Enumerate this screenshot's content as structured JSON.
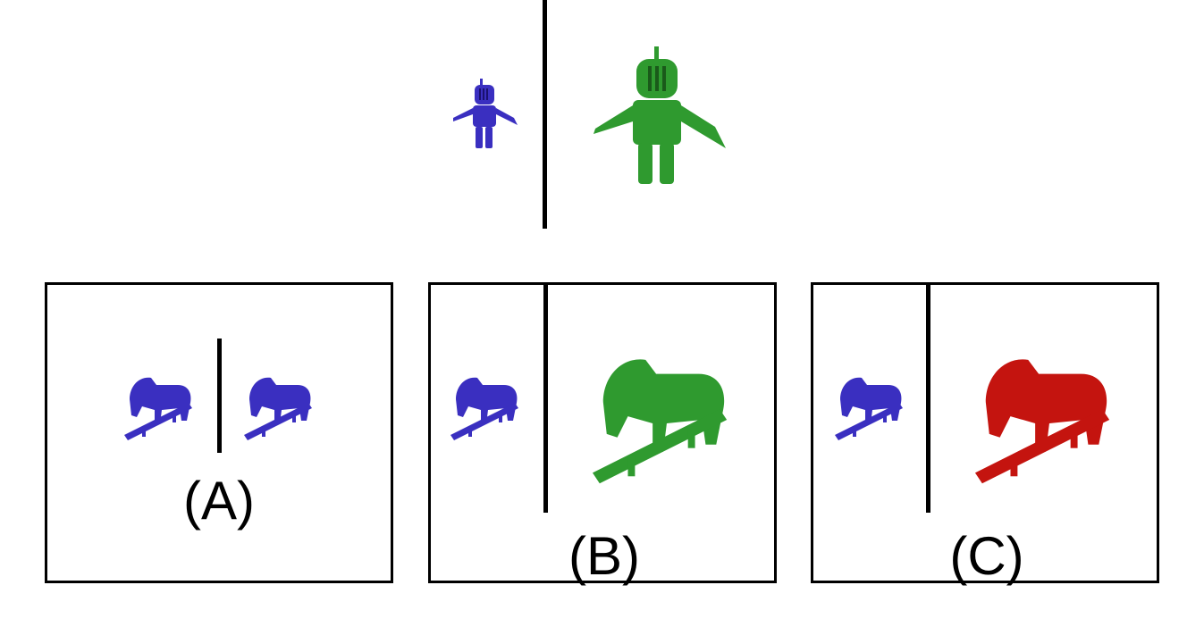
{
  "example": {
    "left_figure": "knight",
    "right_figure": "knight",
    "left_color": "#3a2fc0",
    "right_color": "#2f9a2f"
  },
  "options": [
    {
      "label": "(A)",
      "left_figure": "rocking-horse",
      "right_figure": "rocking-horse",
      "left_color": "#3a2fc0",
      "right_color": "#3a2fc0"
    },
    {
      "label": "(B)",
      "left_figure": "rocking-horse",
      "right_figure": "rocking-horse",
      "left_color": "#3a2fc0",
      "right_color": "#2f9a2f"
    },
    {
      "label": "(C)",
      "left_figure": "rocking-horse",
      "right_figure": "rocking-horse",
      "left_color": "#3a2fc0",
      "right_color": "#c4140f"
    }
  ]
}
